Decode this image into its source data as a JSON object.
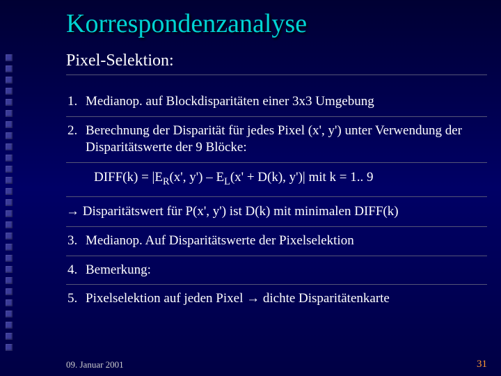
{
  "colors": {
    "background_top": "#000033",
    "background_mid": "#000066",
    "background_bottom": "#000044",
    "title_color": "#00d4d4",
    "text_color": "#ffffff",
    "divider_color": "#555577",
    "page_number_color": "#ff9933",
    "bullet_color": "#3a3a99"
  },
  "typography": {
    "font_family": "Times New Roman, serif",
    "title_fontsize": 38,
    "subtitle_fontsize": 24,
    "body_fontsize": 19,
    "footer_fontsize": 13
  },
  "decoration": {
    "bullet_count": 27,
    "bullet_size": 10,
    "bullet_gap": 6
  },
  "title": "Korrespondenzanalyse",
  "subtitle": "Pixel-Selektion:",
  "items": {
    "n1": "1.",
    "t1": "Medianop. auf Blockdisparitäten einer 3x3 Umgebung",
    "n2": "2.",
    "t2": "Berechnung der Disparität für jedes Pixel (x', y') unter Verwendung der Disparitätswerte der 9 Blöcke:",
    "formula_pre": "DIFF(k) = |E",
    "formula_sub1": "R",
    "formula_mid1": "(x', y') – E",
    "formula_sub2": "L",
    "formula_mid2": "(x' + D(k), y')| mit  k = 1.. 9",
    "arrow": "→ Disparitätswert für P(x', y') ist D(k) mit minimalen DIFF(k)",
    "n3": "3.",
    "t3": "Medianop. Auf Disparitätswerte der Pixelselektion",
    "n4": "4.",
    "t4": "Bemerkung:",
    "n5": "5.",
    "t5": "Pixelselektion auf jeden Pixel → dichte Disparitätenkarte"
  },
  "footer": {
    "date": "09. Januar 2001",
    "page": "31"
  }
}
